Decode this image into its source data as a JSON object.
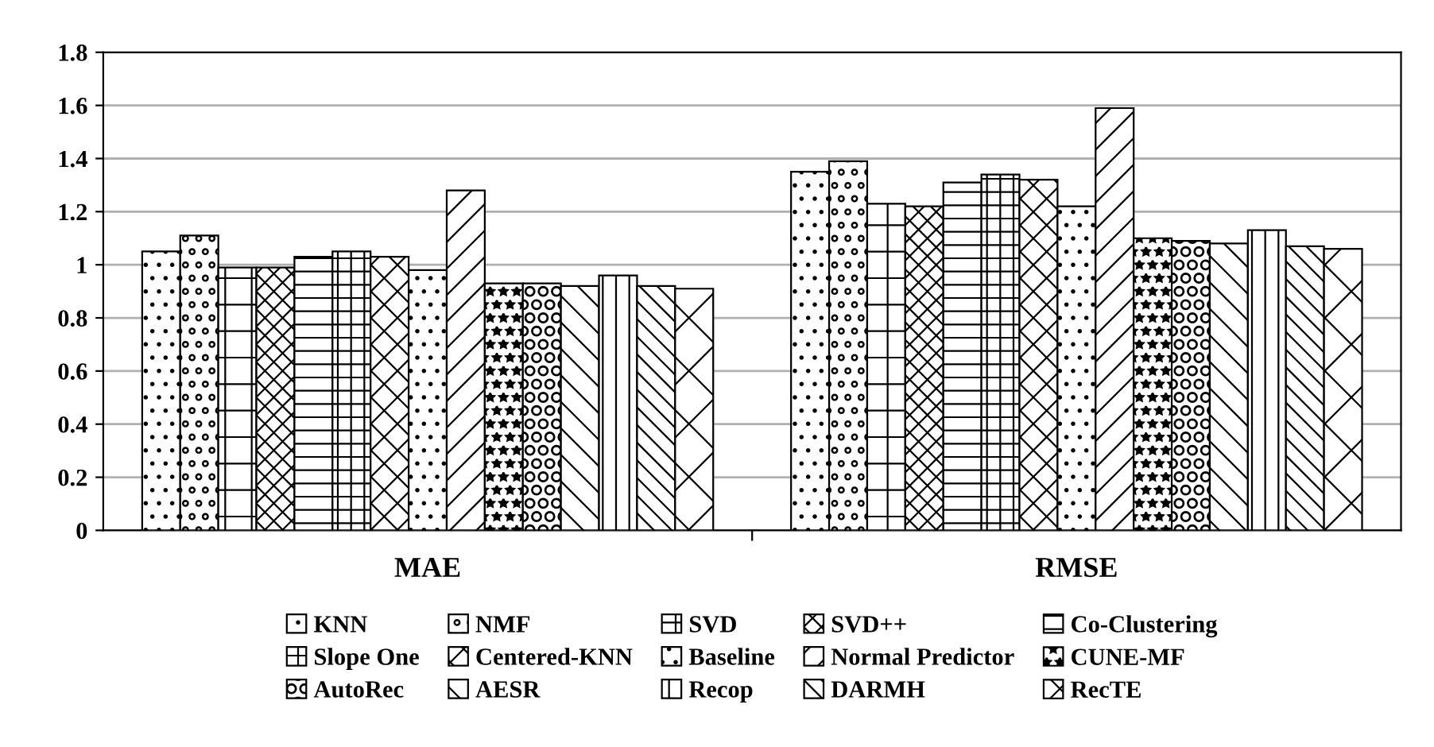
{
  "chart_data": {
    "type": "bar",
    "categories": [
      "MAE",
      "RMSE"
    ],
    "series": [
      {
        "name": "KNN",
        "color": "#000000",
        "values": [
          1.05,
          1.35
        ]
      },
      {
        "name": "NMF",
        "color": "#000000",
        "values": [
          1.11,
          1.39
        ]
      },
      {
        "name": "SVD",
        "color": "#000000",
        "values": [
          0.99,
          1.23
        ]
      },
      {
        "name": "SVD++",
        "color": "#000000",
        "values": [
          0.99,
          1.22
        ]
      },
      {
        "name": "Co-Clustering",
        "color": "#000000",
        "values": [
          1.03,
          1.31
        ]
      },
      {
        "name": "Slope One",
        "color": "#000000",
        "values": [
          1.05,
          1.34
        ]
      },
      {
        "name": "Centered-KNN",
        "color": "#000000",
        "values": [
          1.03,
          1.32
        ]
      },
      {
        "name": "Baseline",
        "color": "#000000",
        "values": [
          0.98,
          1.22
        ]
      },
      {
        "name": "Normal Predictor",
        "color": "#000000",
        "values": [
          1.28,
          1.59
        ]
      },
      {
        "name": "CUNE-MF",
        "color": "#000000",
        "values": [
          0.93,
          1.1
        ]
      },
      {
        "name": "AutoRec",
        "color": "#000000",
        "values": [
          0.93,
          1.09
        ]
      },
      {
        "name": "AESR",
        "color": "#000000",
        "values": [
          0.92,
          1.08
        ]
      },
      {
        "name": "Recop",
        "color": "#000000",
        "values": [
          0.96,
          1.13
        ]
      },
      {
        "name": "DARMH",
        "color": "#000000",
        "values": [
          0.92,
          1.07
        ]
      },
      {
        "name": "RecTE",
        "color": "#000000",
        "values": [
          0.91,
          1.06
        ]
      }
    ],
    "ylim": [
      0,
      1.8
    ],
    "yticks": [
      0,
      0.2,
      0.4,
      0.6,
      0.8,
      1,
      1.2,
      1.4,
      1.6,
      1.8
    ],
    "grid": "y",
    "legend": "bottom"
  }
}
